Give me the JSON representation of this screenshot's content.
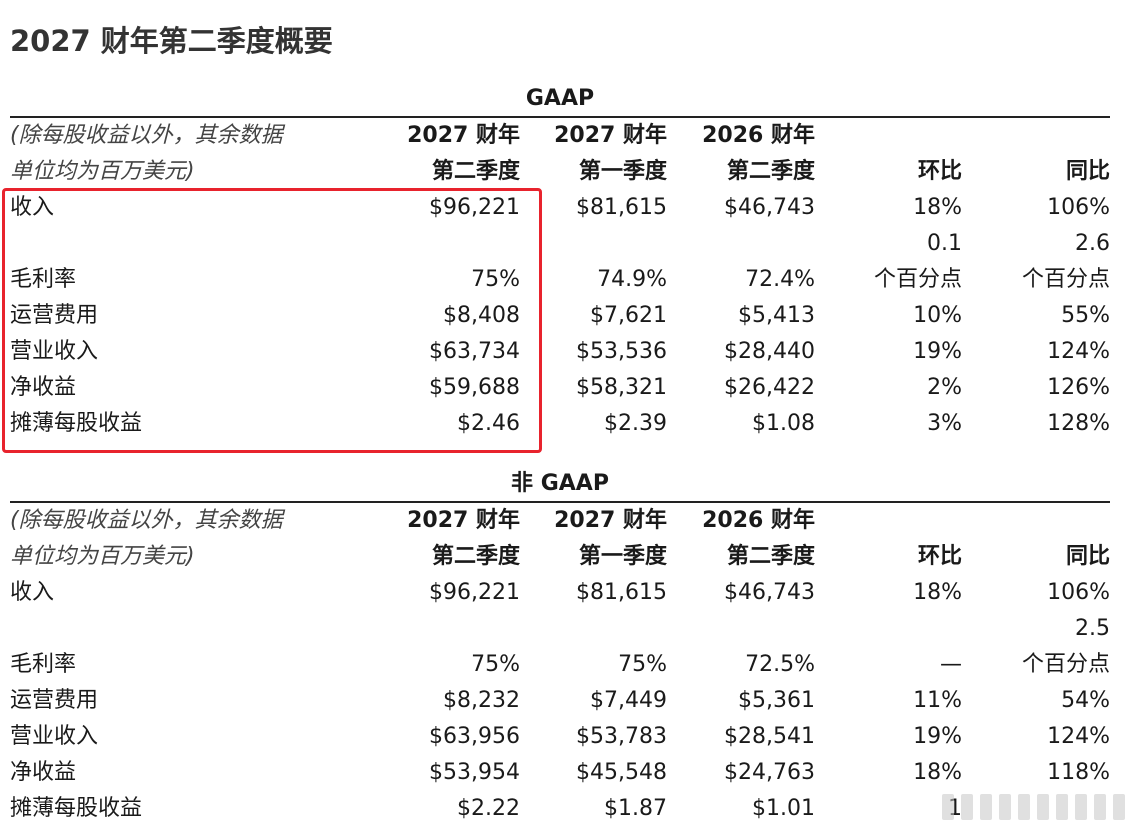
{
  "page_title": "2027 财年第二季度概要",
  "headers": {
    "note_line1": "(除每股收益以外，其余数据",
    "note_line2": "单位均为百万美元)",
    "col1_line1": "2027 财年",
    "col1_line2": "第二季度",
    "col2_line1": "2027 财年",
    "col2_line2": "第一季度",
    "col3_line1": "2026 财年",
    "col3_line2": "第二季度",
    "col4": "环比",
    "col5": "同比"
  },
  "gaap": {
    "title": "GAAP",
    "revenue": {
      "label": "收入",
      "c1": "$96,221",
      "c2": "$81,615",
      "c3": "$46,743",
      "c4": "18%",
      "c5": "106%"
    },
    "gross_margin": {
      "label": "毛利率",
      "c1": "75%",
      "c2": "74.9%",
      "c3": "72.4%",
      "c4_top": "0.1",
      "c4": "个百分点",
      "c5_top": "2.6",
      "c5": "个百分点"
    },
    "opex": {
      "label": "运营费用",
      "c1": "$8,408",
      "c2": "$7,621",
      "c3": "$5,413",
      "c4": "10%",
      "c5": "55%"
    },
    "op_income": {
      "label": "营业收入",
      "c1": "$63,734",
      "c2": "$53,536",
      "c3": "$28,440",
      "c4": "19%",
      "c5": "124%"
    },
    "net_income": {
      "label": "净收益",
      "c1": "$59,688",
      "c2": "$58,321",
      "c3": "$26,422",
      "c4": "2%",
      "c5": "126%"
    },
    "eps": {
      "label": "摊薄每股收益",
      "c1": "$2.46",
      "c2": "$2.39",
      "c3": "$1.08",
      "c4": "3%",
      "c5": "128%"
    }
  },
  "non_gaap": {
    "title": "非 GAAP",
    "revenue": {
      "label": "收入",
      "c1": "$96,221",
      "c2": "$81,615",
      "c3": "$46,743",
      "c4": "18%",
      "c5": "106%"
    },
    "gross_margin": {
      "label": "毛利率",
      "c1": "75%",
      "c2": "75%",
      "c3": "72.5%",
      "c4": "—",
      "c5_top": "2.5",
      "c5": "个百分点"
    },
    "opex": {
      "label": "运营费用",
      "c1": "$8,232",
      "c2": "$7,449",
      "c3": "$5,361",
      "c4": "11%",
      "c5": "54%"
    },
    "op_income": {
      "label": "营业收入",
      "c1": "$63,956",
      "c2": "$53,783",
      "c3": "$28,541",
      "c4": "19%",
      "c5": "124%"
    },
    "net_income": {
      "label": "净收益",
      "c1": "$53,954",
      "c2": "$45,548",
      "c3": "$24,763",
      "c4": "18%",
      "c5": "118%"
    },
    "eps": {
      "label": "摊薄每股收益",
      "c1": "$2.22",
      "c2": "$1.87",
      "c3": "$1.01",
      "c4": "1",
      "c5": ""
    }
  }
}
